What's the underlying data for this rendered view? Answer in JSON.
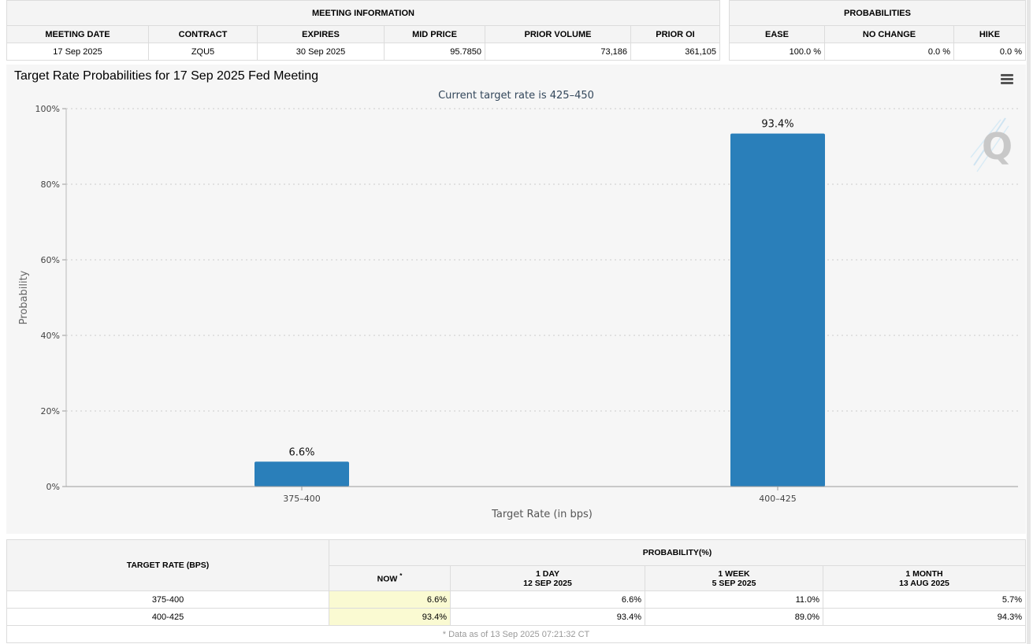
{
  "meeting_info": {
    "group_label": "MEETING INFORMATION",
    "headers": [
      "MEETING DATE",
      "CONTRACT",
      "EXPIRES",
      "MID PRICE",
      "PRIOR VOLUME",
      "PRIOR OI"
    ],
    "values": [
      "17 Sep 2025",
      "ZQU5",
      "30 Sep 2025",
      "95.7850",
      "73,186",
      "361,105"
    ]
  },
  "probabilities": {
    "group_label": "PROBABILITIES",
    "headers": [
      "EASE",
      "NO CHANGE",
      "HIKE"
    ],
    "values": [
      "100.0 %",
      "0.0 %",
      "0.0 %"
    ]
  },
  "chart_data": {
    "type": "bar",
    "title": "Target Rate Probabilities for 17 Sep 2025 Fed Meeting",
    "subtitle": "Current target rate is 425–450",
    "xlabel": "Target Rate (in bps)",
    "ylabel": "Probability",
    "categories": [
      "375–400",
      "400–425"
    ],
    "values": [
      6.6,
      93.4
    ],
    "data_labels": [
      "6.6%",
      "93.4%"
    ],
    "ylim": [
      0,
      100
    ],
    "yticks": [
      0,
      20,
      40,
      60,
      80,
      100
    ],
    "ytick_labels": [
      "0%",
      "20%",
      "40%",
      "60%",
      "80%",
      "100%"
    ],
    "grid": true,
    "bar_color": "#2a7fba",
    "watermark": "Q"
  },
  "rate_table": {
    "target_header": "TARGET RATE (BPS)",
    "prob_header": "PROBABILITY(%)",
    "columns": [
      {
        "label": "NOW",
        "sub": ""
      },
      {
        "label": "1 DAY",
        "sub": "12 SEP 2025"
      },
      {
        "label": "1 WEEK",
        "sub": "5 SEP 2025"
      },
      {
        "label": "1 MONTH",
        "sub": "13 AUG 2025"
      }
    ],
    "now_marker": "*",
    "rows": [
      {
        "rate": "375-400",
        "values": [
          "6.6%",
          "6.6%",
          "11.0%",
          "5.7%"
        ]
      },
      {
        "rate": "400-425",
        "values": [
          "93.4%",
          "93.4%",
          "89.0%",
          "94.3%"
        ]
      }
    ],
    "footnote": "* Data as of 13 Sep 2025 07:21:32 CT"
  }
}
